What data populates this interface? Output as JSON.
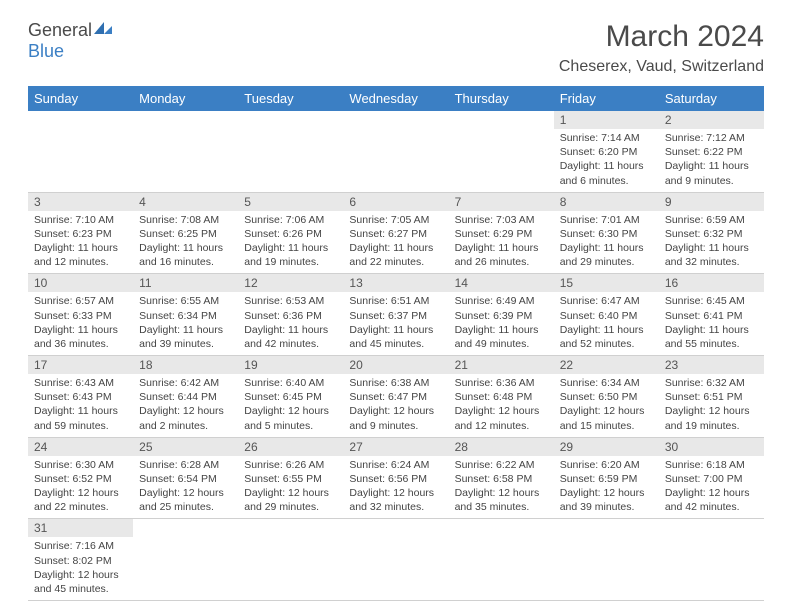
{
  "logo": {
    "text1": "General",
    "text2": "Blue"
  },
  "title": "March 2024",
  "location": "Cheserex, Vaud, Switzerland",
  "colors": {
    "header_bg": "#3b7fc4",
    "header_fg": "#ffffff",
    "daynum_bg": "#e8e8e8",
    "text": "#444444"
  },
  "dayHeaders": [
    "Sunday",
    "Monday",
    "Tuesday",
    "Wednesday",
    "Thursday",
    "Friday",
    "Saturday"
  ],
  "weeks": [
    [
      null,
      null,
      null,
      null,
      null,
      {
        "n": "1",
        "sr": "7:14 AM",
        "ss": "6:20 PM",
        "dl": "11 hours and 6 minutes."
      },
      {
        "n": "2",
        "sr": "7:12 AM",
        "ss": "6:22 PM",
        "dl": "11 hours and 9 minutes."
      }
    ],
    [
      {
        "n": "3",
        "sr": "7:10 AM",
        "ss": "6:23 PM",
        "dl": "11 hours and 12 minutes."
      },
      {
        "n": "4",
        "sr": "7:08 AM",
        "ss": "6:25 PM",
        "dl": "11 hours and 16 minutes."
      },
      {
        "n": "5",
        "sr": "7:06 AM",
        "ss": "6:26 PM",
        "dl": "11 hours and 19 minutes."
      },
      {
        "n": "6",
        "sr": "7:05 AM",
        "ss": "6:27 PM",
        "dl": "11 hours and 22 minutes."
      },
      {
        "n": "7",
        "sr": "7:03 AM",
        "ss": "6:29 PM",
        "dl": "11 hours and 26 minutes."
      },
      {
        "n": "8",
        "sr": "7:01 AM",
        "ss": "6:30 PM",
        "dl": "11 hours and 29 minutes."
      },
      {
        "n": "9",
        "sr": "6:59 AM",
        "ss": "6:32 PM",
        "dl": "11 hours and 32 minutes."
      }
    ],
    [
      {
        "n": "10",
        "sr": "6:57 AM",
        "ss": "6:33 PM",
        "dl": "11 hours and 36 minutes."
      },
      {
        "n": "11",
        "sr": "6:55 AM",
        "ss": "6:34 PM",
        "dl": "11 hours and 39 minutes."
      },
      {
        "n": "12",
        "sr": "6:53 AM",
        "ss": "6:36 PM",
        "dl": "11 hours and 42 minutes."
      },
      {
        "n": "13",
        "sr": "6:51 AM",
        "ss": "6:37 PM",
        "dl": "11 hours and 45 minutes."
      },
      {
        "n": "14",
        "sr": "6:49 AM",
        "ss": "6:39 PM",
        "dl": "11 hours and 49 minutes."
      },
      {
        "n": "15",
        "sr": "6:47 AM",
        "ss": "6:40 PM",
        "dl": "11 hours and 52 minutes."
      },
      {
        "n": "16",
        "sr": "6:45 AM",
        "ss": "6:41 PM",
        "dl": "11 hours and 55 minutes."
      }
    ],
    [
      {
        "n": "17",
        "sr": "6:43 AM",
        "ss": "6:43 PM",
        "dl": "11 hours and 59 minutes."
      },
      {
        "n": "18",
        "sr": "6:42 AM",
        "ss": "6:44 PM",
        "dl": "12 hours and 2 minutes."
      },
      {
        "n": "19",
        "sr": "6:40 AM",
        "ss": "6:45 PM",
        "dl": "12 hours and 5 minutes."
      },
      {
        "n": "20",
        "sr": "6:38 AM",
        "ss": "6:47 PM",
        "dl": "12 hours and 9 minutes."
      },
      {
        "n": "21",
        "sr": "6:36 AM",
        "ss": "6:48 PM",
        "dl": "12 hours and 12 minutes."
      },
      {
        "n": "22",
        "sr": "6:34 AM",
        "ss": "6:50 PM",
        "dl": "12 hours and 15 minutes."
      },
      {
        "n": "23",
        "sr": "6:32 AM",
        "ss": "6:51 PM",
        "dl": "12 hours and 19 minutes."
      }
    ],
    [
      {
        "n": "24",
        "sr": "6:30 AM",
        "ss": "6:52 PM",
        "dl": "12 hours and 22 minutes."
      },
      {
        "n": "25",
        "sr": "6:28 AM",
        "ss": "6:54 PM",
        "dl": "12 hours and 25 minutes."
      },
      {
        "n": "26",
        "sr": "6:26 AM",
        "ss": "6:55 PM",
        "dl": "12 hours and 29 minutes."
      },
      {
        "n": "27",
        "sr": "6:24 AM",
        "ss": "6:56 PM",
        "dl": "12 hours and 32 minutes."
      },
      {
        "n": "28",
        "sr": "6:22 AM",
        "ss": "6:58 PM",
        "dl": "12 hours and 35 minutes."
      },
      {
        "n": "29",
        "sr": "6:20 AM",
        "ss": "6:59 PM",
        "dl": "12 hours and 39 minutes."
      },
      {
        "n": "30",
        "sr": "6:18 AM",
        "ss": "7:00 PM",
        "dl": "12 hours and 42 minutes."
      }
    ],
    [
      {
        "n": "31",
        "sr": "7:16 AM",
        "ss": "8:02 PM",
        "dl": "12 hours and 45 minutes."
      },
      null,
      null,
      null,
      null,
      null,
      null
    ]
  ],
  "labels": {
    "sunrise": "Sunrise:",
    "sunset": "Sunset:",
    "daylight": "Daylight:"
  }
}
